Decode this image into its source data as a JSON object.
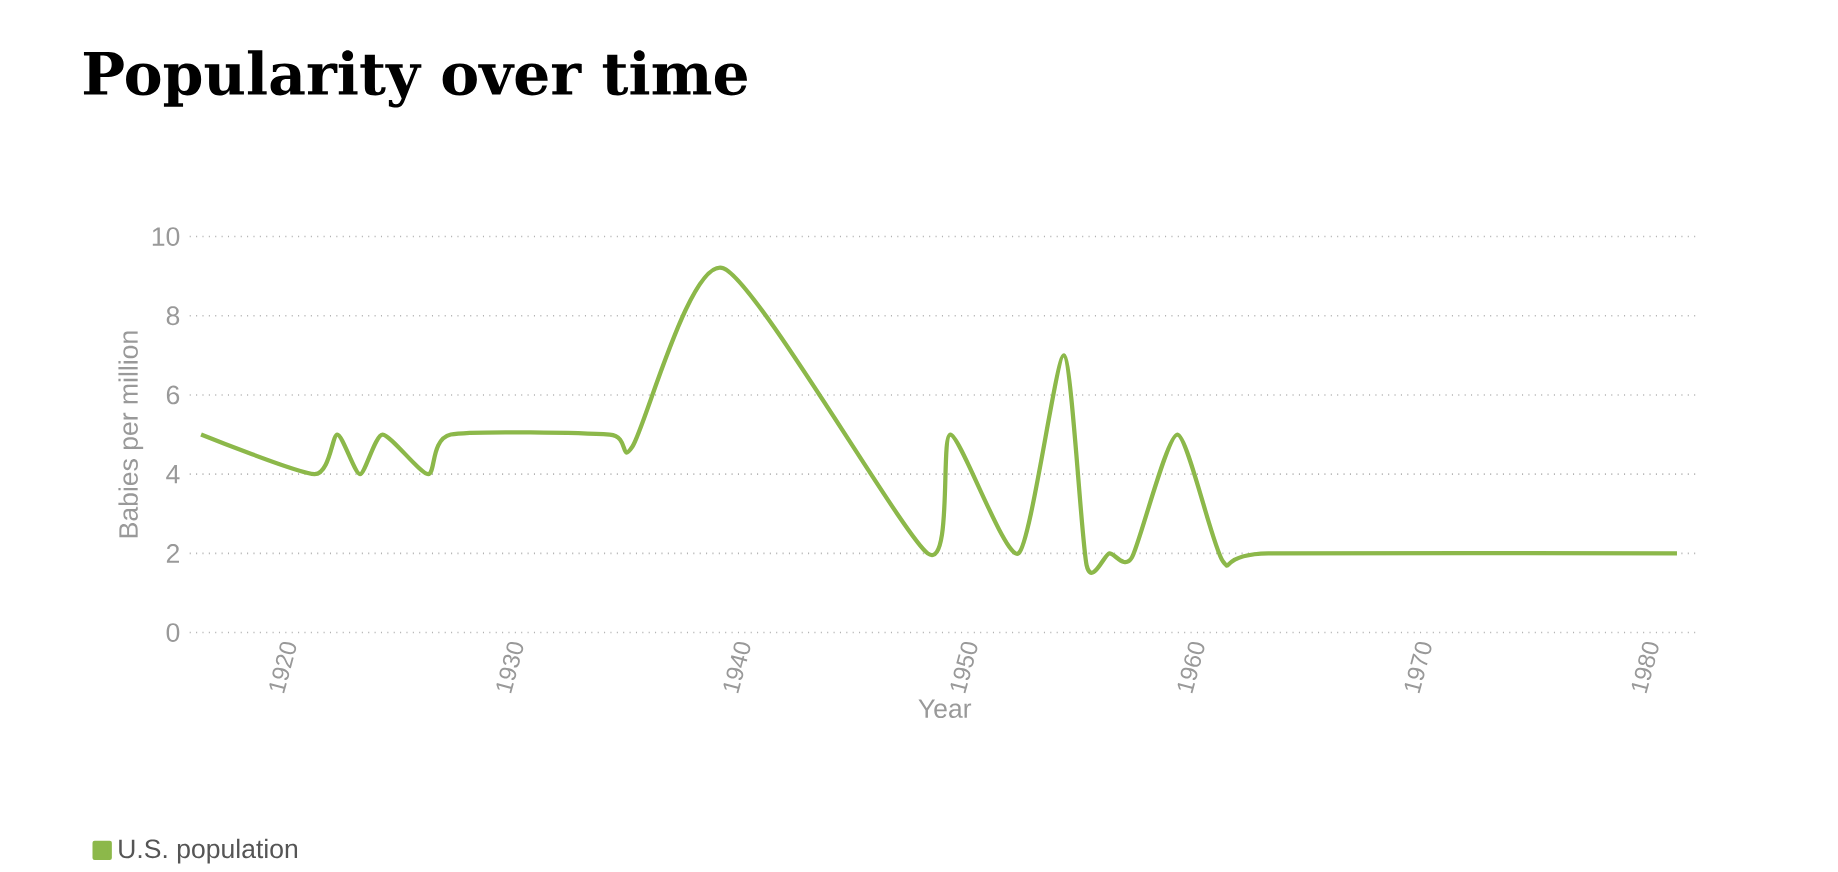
{
  "chart_data": {
    "type": "line",
    "title": "Popularity over time",
    "xlabel": "Year",
    "ylabel": "Babies per million",
    "series": [
      {
        "name": "U.S. population",
        "color": "#8cb84a",
        "x": [
          1916,
          1921,
          1922,
          1923,
          1924,
          1926,
          1927,
          1934,
          1935,
          1939,
          1948,
          1949,
          1952,
          1954,
          1955,
          1956,
          1957,
          1959,
          1961,
          1963,
          1981
        ],
        "values": [
          5,
          4,
          5,
          4,
          5,
          4,
          5,
          5,
          4.7,
          9.2,
          2,
          5,
          2,
          7,
          1.7,
          2,
          1.9,
          5,
          1.8,
          2,
          2
        ]
      }
    ],
    "xlim": [
      1915.5,
      1982
    ],
    "xticks": [
      1920,
      1930,
      1940,
      1950,
      1960,
      1970,
      1980
    ],
    "ylim": [
      0,
      10
    ],
    "yticks": [
      0,
      2,
      4,
      6,
      8,
      10
    ],
    "grid": "y",
    "legend": "bottom left",
    "marker": "none",
    "line_style": "solid"
  }
}
